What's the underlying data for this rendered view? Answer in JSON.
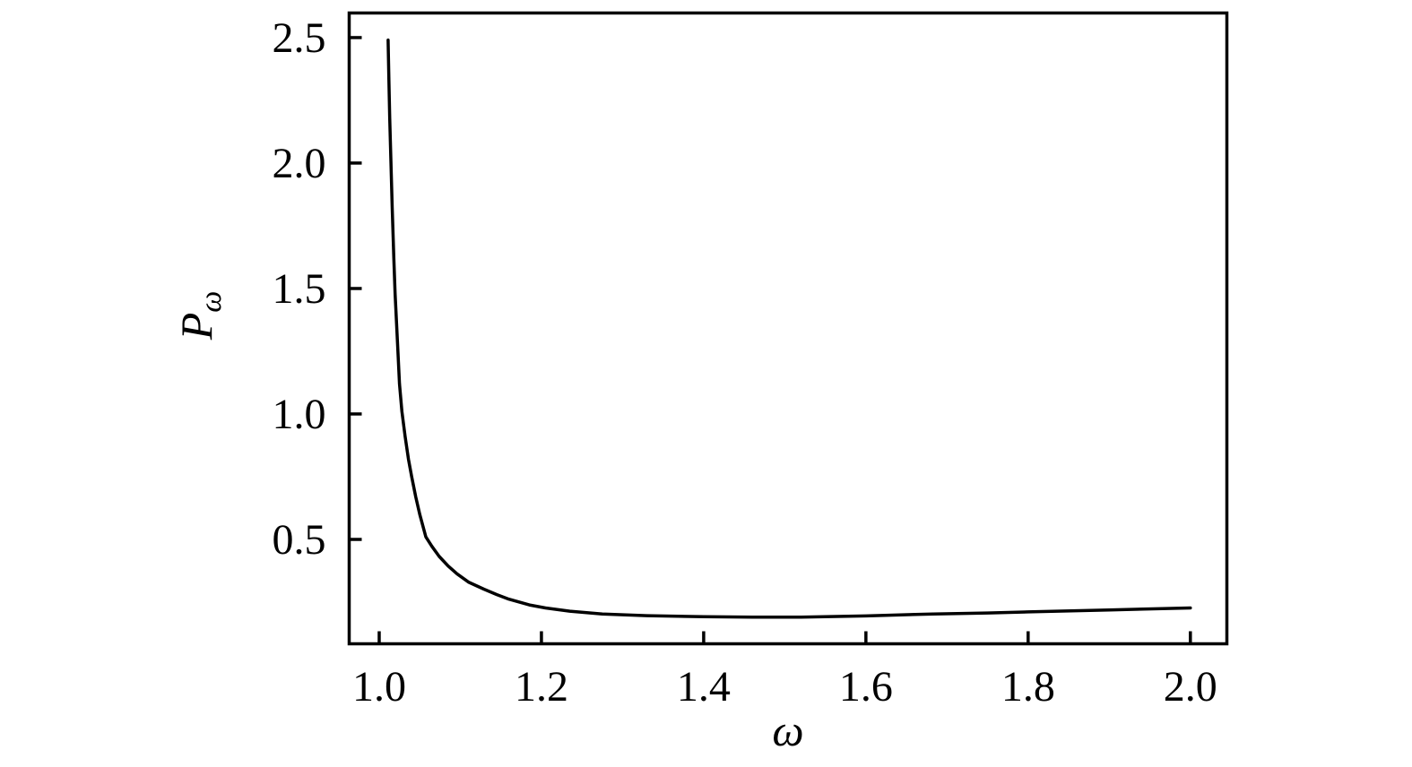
{
  "figure": {
    "background": "#ffffff",
    "axis_color": "#000000"
  },
  "chart_data": {
    "type": "line",
    "title": "",
    "xlabel": "ω",
    "ylabel": "P_ω",
    "ylabel_base": "P",
    "ylabel_sub": "ω",
    "xlim": [
      0.963,
      2.045
    ],
    "ylim": [
      0.084,
      2.598
    ],
    "x_ticks": [
      1.0,
      1.2,
      1.4,
      1.6,
      1.8,
      2.0
    ],
    "x_tick_labels": [
      "1.0",
      "1.2",
      "1.4",
      "1.6",
      "1.8",
      "2.0"
    ],
    "y_ticks": [
      0.5,
      1.0,
      1.5,
      2.0,
      2.5
    ],
    "y_tick_labels": [
      "0.5",
      "1.0",
      "1.5",
      "2.0",
      "2.5"
    ],
    "grid": false,
    "legend": null,
    "line_color": "#000000",
    "line_width": 3.5,
    "frame_width": 3.5,
    "tick_length": 14,
    "series": [
      {
        "name": "P_omega",
        "points": [
          [
            1.011,
            2.49
          ],
          [
            1.012,
            2.33
          ],
          [
            1.013,
            2.18
          ],
          [
            1.0145,
            2.0
          ],
          [
            1.016,
            1.82
          ],
          [
            1.018,
            1.62
          ],
          [
            1.0196,
            1.48
          ],
          [
            1.022,
            1.32
          ],
          [
            1.025,
            1.12
          ],
          [
            1.028,
            1.01
          ],
          [
            1.032,
            0.91
          ],
          [
            1.036,
            0.82
          ],
          [
            1.04,
            0.75
          ],
          [
            1.045,
            0.67
          ],
          [
            1.05,
            0.6
          ],
          [
            1.0575,
            0.51
          ],
          [
            1.065,
            0.472
          ],
          [
            1.074,
            0.432
          ],
          [
            1.085,
            0.394
          ],
          [
            1.096,
            0.363
          ],
          [
            1.11,
            0.33
          ],
          [
            1.129,
            0.302
          ],
          [
            1.145,
            0.28
          ],
          [
            1.16,
            0.262
          ],
          [
            1.185,
            0.239
          ],
          [
            1.205,
            0.227
          ],
          [
            1.235,
            0.214
          ],
          [
            1.275,
            0.203
          ],
          [
            1.33,
            0.196
          ],
          [
            1.4,
            0.192
          ],
          [
            1.46,
            0.19
          ],
          [
            1.52,
            0.19
          ],
          [
            1.6,
            0.195
          ],
          [
            1.683,
            0.203
          ],
          [
            1.75,
            0.207
          ],
          [
            1.8,
            0.211
          ],
          [
            1.9,
            0.219
          ],
          [
            2.0,
            0.227
          ]
        ]
      }
    ]
  }
}
